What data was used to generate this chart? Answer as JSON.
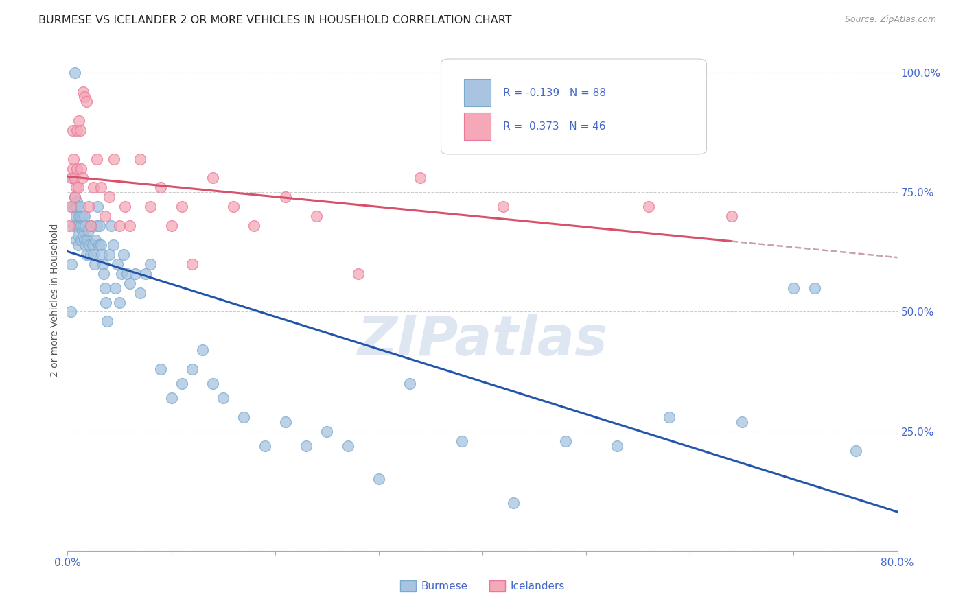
{
  "title": "BURMESE VS ICELANDER 2 OR MORE VEHICLES IN HOUSEHOLD CORRELATION CHART",
  "source": "Source: ZipAtlas.com",
  "ylabel": "2 or more Vehicles in Household",
  "xlim": [
    0.0,
    0.8
  ],
  "ylim": [
    0.0,
    1.05
  ],
  "ytick_positions": [
    0.0,
    0.25,
    0.5,
    0.75,
    1.0
  ],
  "ytick_labels": [
    "",
    "25.0%",
    "50.0%",
    "75.0%",
    "100.0%"
  ],
  "xtick_vals": [
    0.0,
    0.1,
    0.2,
    0.3,
    0.4,
    0.5,
    0.6,
    0.7,
    0.8
  ],
  "xtick_labels": [
    "0.0%",
    "",
    "",
    "",
    "",
    "",
    "",
    "",
    "80.0%"
  ],
  "burmese_color": "#a8c4e0",
  "burmese_edge_color": "#7aaace",
  "icelander_color": "#f4a8b8",
  "icelander_edge_color": "#e87898",
  "burmese_line_color": "#2255aa",
  "icelander_line_color": "#d9506a",
  "icelander_dashed_color": "#c8a0b0",
  "background_color": "#ffffff",
  "grid_color": "#cccccc",
  "title_color": "#222222",
  "source_color": "#999999",
  "tick_color": "#4466cc",
  "burmese_R": -0.139,
  "burmese_N": 88,
  "icelander_R": 0.373,
  "icelander_N": 46,
  "watermark": "ZIPatlas",
  "watermark_color": "#c8d8e8",
  "burmese_x": [
    0.003,
    0.004,
    0.005,
    0.005,
    0.006,
    0.007,
    0.007,
    0.007,
    0.008,
    0.008,
    0.009,
    0.009,
    0.01,
    0.01,
    0.01,
    0.011,
    0.011,
    0.012,
    0.012,
    0.013,
    0.013,
    0.014,
    0.014,
    0.015,
    0.015,
    0.016,
    0.016,
    0.017,
    0.017,
    0.018,
    0.019,
    0.02,
    0.021,
    0.022,
    0.023,
    0.024,
    0.025,
    0.026,
    0.027,
    0.028,
    0.029,
    0.03,
    0.031,
    0.032,
    0.033,
    0.034,
    0.035,
    0.036,
    0.037,
    0.038,
    0.04,
    0.042,
    0.044,
    0.046,
    0.048,
    0.05,
    0.052,
    0.054,
    0.057,
    0.06,
    0.065,
    0.07,
    0.075,
    0.08,
    0.09,
    0.1,
    0.11,
    0.12,
    0.13,
    0.14,
    0.15,
    0.17,
    0.19,
    0.21,
    0.23,
    0.25,
    0.27,
    0.3,
    0.33,
    0.38,
    0.43,
    0.48,
    0.53,
    0.58,
    0.65,
    0.7,
    0.72,
    0.76
  ],
  "burmese_y": [
    0.5,
    0.6,
    0.72,
    0.78,
    0.68,
    0.74,
    0.72,
    1.0,
    0.7,
    0.65,
    0.73,
    0.72,
    0.68,
    0.66,
    0.64,
    0.7,
    0.68,
    0.72,
    0.7,
    0.68,
    0.65,
    0.7,
    0.67,
    0.66,
    0.68,
    0.65,
    0.7,
    0.68,
    0.64,
    0.62,
    0.65,
    0.67,
    0.64,
    0.62,
    0.68,
    0.64,
    0.62,
    0.6,
    0.65,
    0.68,
    0.72,
    0.64,
    0.68,
    0.64,
    0.62,
    0.6,
    0.58,
    0.55,
    0.52,
    0.48,
    0.62,
    0.68,
    0.64,
    0.55,
    0.6,
    0.52,
    0.58,
    0.62,
    0.58,
    0.56,
    0.58,
    0.54,
    0.58,
    0.6,
    0.38,
    0.32,
    0.35,
    0.38,
    0.42,
    0.35,
    0.32,
    0.28,
    0.22,
    0.27,
    0.22,
    0.25,
    0.22,
    0.15,
    0.35,
    0.23,
    0.1,
    0.23,
    0.22,
    0.28,
    0.27,
    0.55,
    0.55,
    0.21
  ],
  "icelander_x": [
    0.002,
    0.003,
    0.004,
    0.005,
    0.005,
    0.006,
    0.007,
    0.007,
    0.008,
    0.009,
    0.009,
    0.01,
    0.011,
    0.012,
    0.013,
    0.014,
    0.015,
    0.016,
    0.018,
    0.02,
    0.022,
    0.025,
    0.028,
    0.032,
    0.036,
    0.04,
    0.045,
    0.05,
    0.055,
    0.06,
    0.07,
    0.08,
    0.09,
    0.1,
    0.11,
    0.12,
    0.14,
    0.16,
    0.18,
    0.21,
    0.24,
    0.28,
    0.34,
    0.42,
    0.56,
    0.64
  ],
  "icelander_y": [
    0.68,
    0.72,
    0.78,
    0.8,
    0.88,
    0.82,
    0.78,
    0.74,
    0.76,
    0.8,
    0.88,
    0.76,
    0.9,
    0.88,
    0.8,
    0.78,
    0.96,
    0.95,
    0.94,
    0.72,
    0.68,
    0.76,
    0.82,
    0.76,
    0.7,
    0.74,
    0.82,
    0.68,
    0.72,
    0.68,
    0.82,
    0.72,
    0.76,
    0.68,
    0.72,
    0.6,
    0.78,
    0.72,
    0.68,
    0.74,
    0.7,
    0.58,
    0.78,
    0.72,
    0.72,
    0.7
  ]
}
